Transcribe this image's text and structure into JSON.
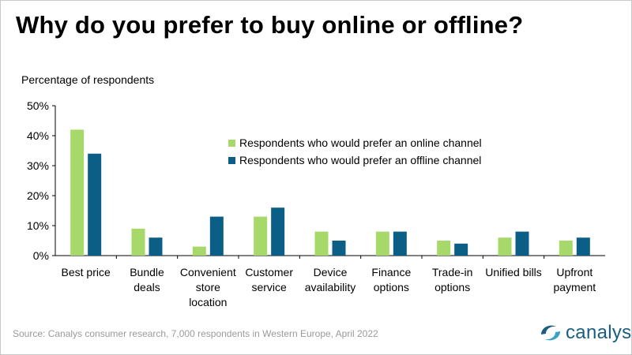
{
  "title": "Why do you prefer to buy online or offline?",
  "source": "Source: Canalys consumer research, 7,000 respondents in Western Europe, April 2022",
  "logo": {
    "text": "canalys",
    "icon": "canalys-swirl-icon",
    "color": "#1a5f80"
  },
  "colors": {
    "online": "#a6d96a",
    "offline": "#0b5f86"
  },
  "chart_data": {
    "type": "bar",
    "ylabel": "Percentage of respondents",
    "xlabel": "",
    "ylim": [
      0,
      50
    ],
    "yticks": [
      "0%",
      "10%",
      "20%",
      "30%",
      "40%",
      "50%"
    ],
    "legend_position": "top-center",
    "grid": false,
    "categories": [
      [
        "Best price"
      ],
      [
        "Bundle",
        "deals"
      ],
      [
        "Convenient",
        "store",
        "location"
      ],
      [
        "Customer",
        "service"
      ],
      [
        "Device",
        "availability"
      ],
      [
        "Finance",
        "options"
      ],
      [
        "Trade-in",
        "options"
      ],
      [
        "Unified bills"
      ],
      [
        "Upfront",
        "payment"
      ]
    ],
    "series": [
      {
        "name": "Respondents who would prefer an online channel",
        "values": [
          42,
          9,
          3,
          13,
          8,
          8,
          5,
          6,
          5
        ]
      },
      {
        "name": "Respondents who would prefer an offline channel",
        "values": [
          34,
          6,
          13,
          16,
          5,
          8,
          4,
          8,
          6
        ]
      }
    ]
  }
}
